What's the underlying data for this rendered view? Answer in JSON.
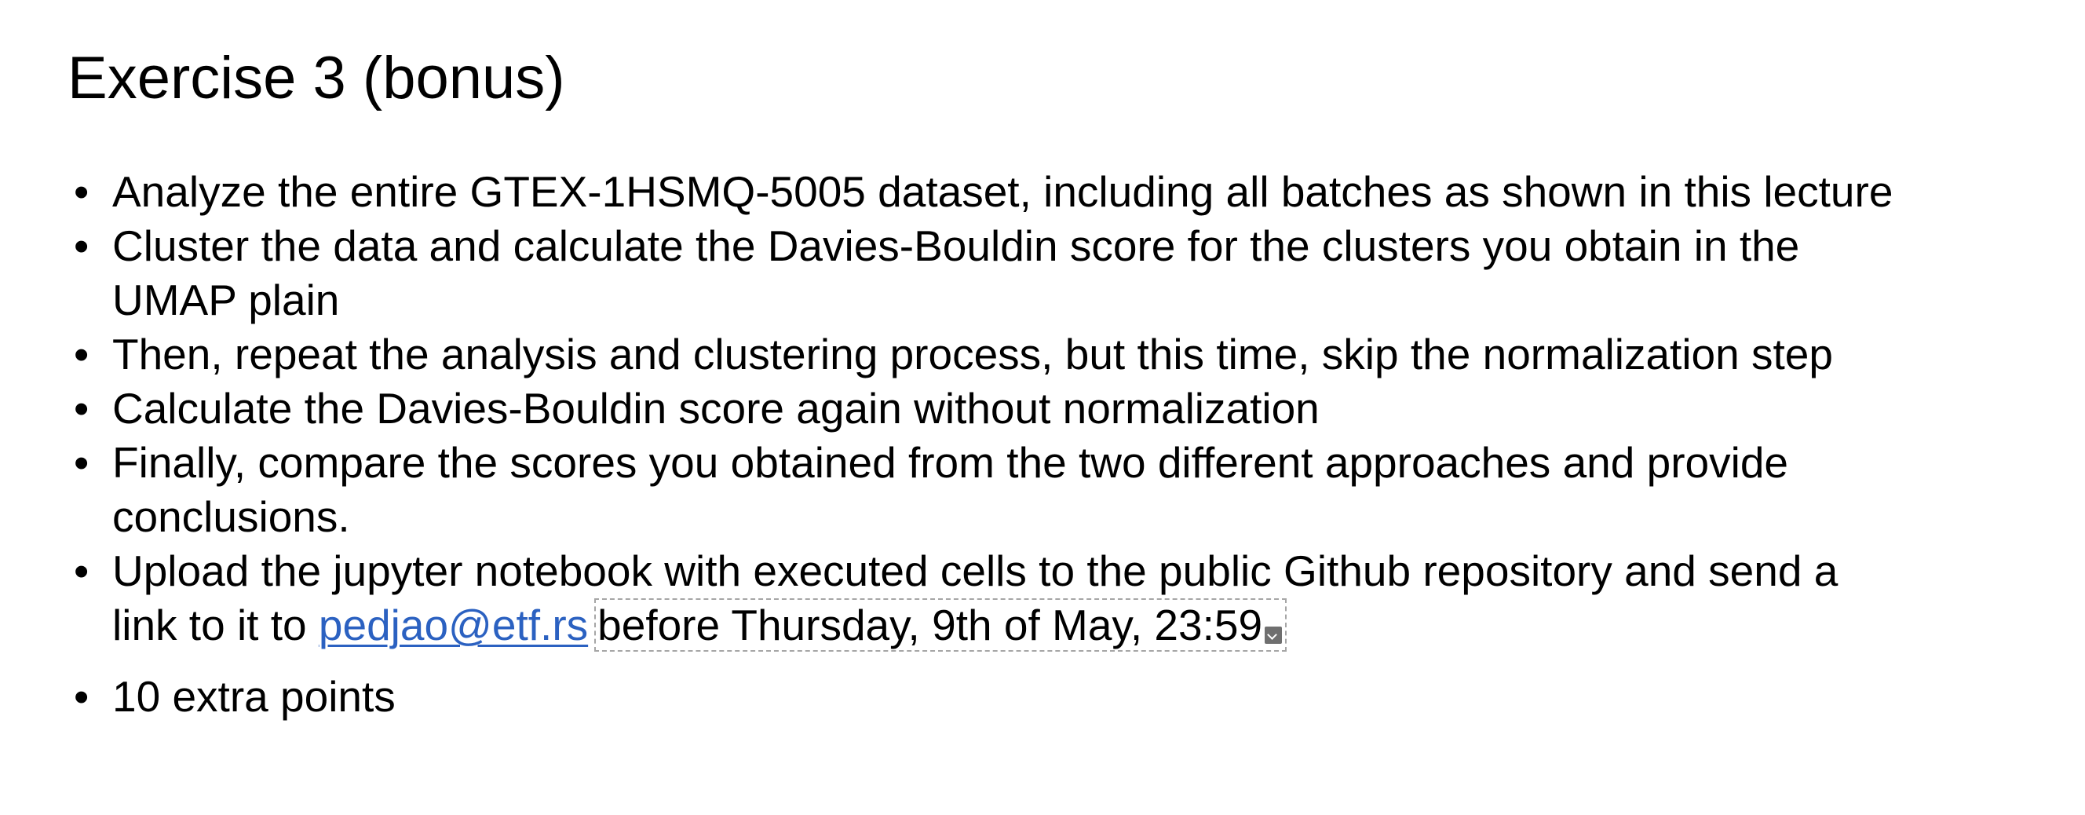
{
  "slide": {
    "title": "Exercise 3 (bonus)",
    "bullet_symbol": "•",
    "bullets": [
      {
        "lines": [
          "Analyze the entire GTEX-1HSMQ-5005 dataset, including all batches as shown in this lecture"
        ]
      },
      {
        "lines": [
          "Cluster the data and calculate the Davies-Bouldin score for the clusters you obtain in the",
          "UMAP plain"
        ]
      },
      {
        "lines": [
          "Then, repeat the analysis and clustering process, but this time, skip the normalization step"
        ]
      },
      {
        "lines": [
          "Calculate the Davies-Bouldin score again without normalization"
        ]
      },
      {
        "lines": [
          "Finally, compare the scores you obtained from the two different approaches and provide",
          "conclusions."
        ]
      },
      {
        "line1": "Upload the jupyter notebook with executed cells to the public Github repository and send a",
        "line2_prefix": "link to it to",
        "email": "pedjao@etf.rs",
        "deadline": "before Thursday, 9th of May, 23:59."
      },
      {
        "lines": [
          "10 extra points"
        ]
      }
    ]
  },
  "icons": {
    "date_options": "dropdown-arrow-icon"
  },
  "colors": {
    "link": "#2b61c1",
    "text": "#000000",
    "background": "#ffffff"
  }
}
